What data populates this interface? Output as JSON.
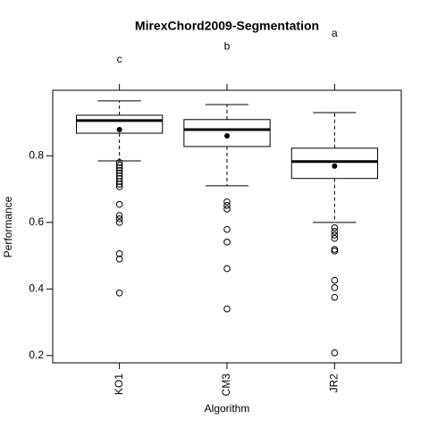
{
  "chart_data": {
    "type": "box",
    "title": "MirexChord2009-Segmentation",
    "x_label": "Algorithm",
    "y_label": "Performance",
    "categories": [
      "KO1",
      "CM3",
      "JR2"
    ],
    "group_letters": [
      "c",
      "b",
      "a"
    ],
    "boxes": [
      {
        "whisker_low": 0.785,
        "q1": 0.868,
        "median": 0.906,
        "q3": 0.922,
        "whisker_high": 0.965,
        "mean": 0.879,
        "outliers": [
          0.78,
          0.772,
          0.764,
          0.756,
          0.748,
          0.74,
          0.732,
          0.723,
          0.715,
          0.707,
          0.654,
          0.621,
          0.611,
          0.6,
          0.506,
          0.49,
          0.388
        ]
      },
      {
        "whisker_low": 0.71,
        "q1": 0.828,
        "median": 0.879,
        "q3": 0.909,
        "whisker_high": 0.954,
        "mean": 0.86,
        "outliers": [
          0.662,
          0.651,
          0.64,
          0.579,
          0.541,
          0.461,
          0.34
        ]
      },
      {
        "whisker_low": 0.6,
        "q1": 0.732,
        "median": 0.783,
        "q3": 0.823,
        "whisker_high": 0.93,
        "mean": 0.769,
        "outliers": [
          0.584,
          0.573,
          0.562,
          0.552,
          0.519,
          0.514,
          0.426,
          0.404,
          0.375,
          0.208
        ]
      }
    ],
    "ylim": [
      0.178,
      0.997
    ],
    "yticks": [
      0.2,
      0.4,
      0.6,
      0.8
    ]
  }
}
